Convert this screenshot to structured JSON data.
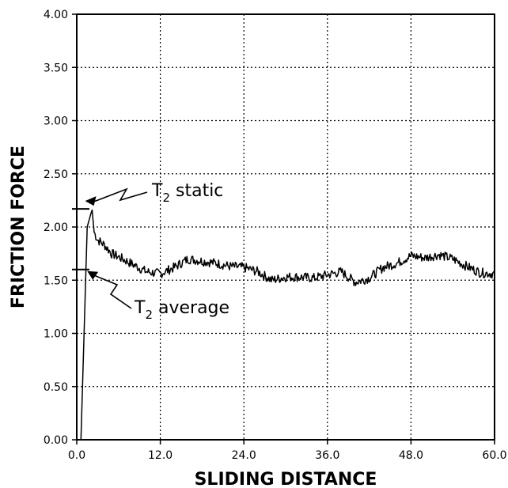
{
  "chart_data": {
    "type": "line",
    "title": "",
    "xlabel": "SLIDING DISTANCE",
    "ylabel": "FRICTION FORCE",
    "xlim": [
      0,
      60
    ],
    "ylim": [
      0,
      4
    ],
    "grid": true,
    "x_ticks": [
      0,
      12,
      24,
      36,
      48,
      60
    ],
    "x_tick_labels": [
      "0.0",
      "12.0",
      "24.0",
      "36.0",
      "48.0",
      "60.0"
    ],
    "y_ticks": [
      0,
      0.5,
      1,
      1.5,
      2,
      2.5,
      3,
      3.5,
      4
    ],
    "y_tick_labels": [
      "0.00",
      "0.50",
      "1.00",
      "1.50",
      "2.00",
      "2.50",
      "3.00",
      "3.50",
      "4.00"
    ],
    "series": [
      {
        "x": [
          0.6,
          1.5,
          2.0,
          2.2,
          2.5,
          3.0,
          4.0,
          5.0,
          6.0,
          8.0,
          10.0,
          12.0,
          14.0,
          16.0,
          18.0,
          20.0,
          22.0,
          24.0,
          26.0,
          28.0,
          30.0,
          32.0,
          34.0,
          36.0,
          38.0,
          40.0,
          42.0,
          44.0,
          46.0,
          48.0,
          50.0,
          52.0,
          54.0,
          56.0,
          58.0,
          60.0
        ],
        "y": [
          0.0,
          2.0,
          2.12,
          2.16,
          1.95,
          1.88,
          1.83,
          1.75,
          1.72,
          1.65,
          1.58,
          1.56,
          1.62,
          1.7,
          1.68,
          1.66,
          1.63,
          1.62,
          1.58,
          1.5,
          1.53,
          1.53,
          1.52,
          1.55,
          1.58,
          1.48,
          1.52,
          1.62,
          1.66,
          1.73,
          1.71,
          1.74,
          1.7,
          1.63,
          1.57,
          1.56
        ]
      }
    ],
    "reference_marks": [
      {
        "y": 2.17
      },
      {
        "y": 1.6
      }
    ],
    "annotations": [
      {
        "text": "T",
        "sub": "2",
        "rest": " static",
        "x": 2.2,
        "y": 2.16
      },
      {
        "text": "T",
        "sub": "2",
        "rest": " average",
        "x": 2.0,
        "y": 1.6
      }
    ]
  }
}
